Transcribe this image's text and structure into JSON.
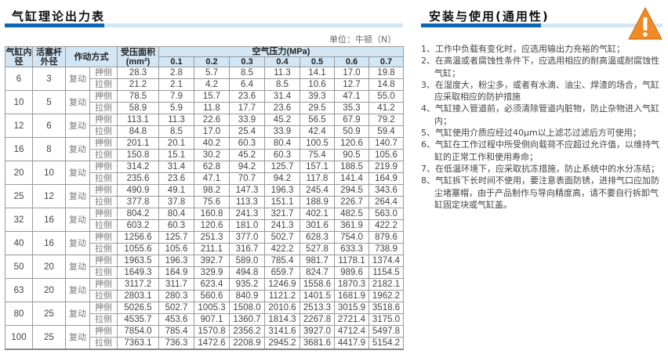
{
  "left_title": "气缸理论出力表",
  "right_title": "安装与使用(通用性)",
  "unit": "单位：牛顿（N）",
  "warning_icon": "warning-triangle-icon",
  "colors": {
    "accent": "#1166b3",
    "header_bg": "#d3e6f6",
    "warning": "#f08a24"
  },
  "table": {
    "headers": {
      "bore": "气缸内径",
      "rod": "活塞杆外径",
      "action": "作动方式",
      "area": "受压面积(mm²)",
      "pressure": "空气压力(MPa)",
      "pressures": [
        "0.1",
        "0.2",
        "0.3",
        "0.4",
        "0.5",
        "0.6",
        "0.7"
      ]
    },
    "rows": [
      {
        "bore": "6",
        "rod": "3",
        "action": "复动",
        "push": {
          "side": "押侧",
          "area": "28.3",
          "forces": [
            "2.8",
            "5.7",
            "8.5",
            "11.3",
            "14.1",
            "17.0",
            "19.8"
          ]
        },
        "pull": {
          "side": "拉侧",
          "area": "21.2",
          "forces": [
            "2.1",
            "4.2",
            "6.4",
            "8.5",
            "10.6",
            "12.7",
            "14.8"
          ]
        }
      },
      {
        "bore": "10",
        "rod": "5",
        "action": "复动",
        "push": {
          "side": "押侧",
          "area": "78.5",
          "forces": [
            "7.9",
            "15.7",
            "23.6",
            "31.4",
            "39.3",
            "47.1",
            "55.0"
          ]
        },
        "pull": {
          "side": "拉侧",
          "area": "58.9",
          "forces": [
            "5.9",
            "11.8",
            "17.7",
            "23.6",
            "29.5",
            "35.3",
            "41.2"
          ]
        }
      },
      {
        "bore": "12",
        "rod": "6",
        "action": "复动",
        "push": {
          "side": "押侧",
          "area": "113.1",
          "forces": [
            "11.3",
            "22.6",
            "33.9",
            "45.2",
            "56.5",
            "67.9",
            "79.2"
          ]
        },
        "pull": {
          "side": "拉侧",
          "area": "84.8",
          "forces": [
            "8.5",
            "17.0",
            "25.4",
            "33.9",
            "42.4",
            "50.9",
            "59.4"
          ]
        }
      },
      {
        "bore": "16",
        "rod": "8",
        "action": "复动",
        "push": {
          "side": "押侧",
          "area": "201.1",
          "forces": [
            "20.1",
            "40.2",
            "60.3",
            "80.4",
            "100.5",
            "120.6",
            "140.7"
          ]
        },
        "pull": {
          "side": "拉侧",
          "area": "150.8",
          "forces": [
            "15.1",
            "30.2",
            "45.2",
            "60.3",
            "75.4",
            "90.5",
            "105.6"
          ]
        }
      },
      {
        "bore": "20",
        "rod": "10",
        "action": "复动",
        "push": {
          "side": "押侧",
          "area": "314.2",
          "forces": [
            "31.4",
            "62.8",
            "94.2",
            "125.7",
            "157.1",
            "188.5",
            "219.9"
          ]
        },
        "pull": {
          "side": "拉侧",
          "area": "235.6",
          "forces": [
            "23.6",
            "47.1",
            "70.7",
            "94.2",
            "117.8",
            "141.4",
            "164.9"
          ]
        }
      },
      {
        "bore": "25",
        "rod": "12",
        "action": "复动",
        "push": {
          "side": "押侧",
          "area": "490.9",
          "forces": [
            "49.1",
            "98.2",
            "147.3",
            "196.3",
            "245.4",
            "294.5",
            "343.6"
          ]
        },
        "pull": {
          "side": "拉侧",
          "area": "377.8",
          "forces": [
            "37.8",
            "75.6",
            "113.3",
            "151.1",
            "188.9",
            "226.7",
            "264.4"
          ]
        }
      },
      {
        "bore": "32",
        "rod": "16",
        "action": "复动",
        "push": {
          "side": "押侧",
          "area": "804.2",
          "forces": [
            "80.4",
            "160.8",
            "241.3",
            "321.7",
            "402.1",
            "482.5",
            "563.0"
          ]
        },
        "pull": {
          "side": "拉侧",
          "area": "603.2",
          "forces": [
            "60.3",
            "120.6",
            "181.0",
            "241.3",
            "301.6",
            "361.9",
            "422.2"
          ]
        }
      },
      {
        "bore": "40",
        "rod": "16",
        "action": "复动",
        "push": {
          "side": "押侧",
          "area": "1256.6",
          "forces": [
            "125.7",
            "251.3",
            "377.0",
            "502.7",
            "628.3",
            "754.0",
            "879.6"
          ]
        },
        "pull": {
          "side": "拉侧",
          "area": "1055.6",
          "forces": [
            "105.6",
            "211.1",
            "316.7",
            "422.2",
            "527.8",
            "633.3",
            "738.9"
          ]
        }
      },
      {
        "bore": "50",
        "rod": "20",
        "action": "复动",
        "push": {
          "side": "押侧",
          "area": "1963.5",
          "forces": [
            "196.3",
            "392.7",
            "589.0",
            "785.4",
            "981.7",
            "1178.1",
            "1374.4"
          ]
        },
        "pull": {
          "side": "拉侧",
          "area": "1649.3",
          "forces": [
            "164.9",
            "329.9",
            "494.8",
            "659.7",
            "824.7",
            "989.6",
            "1154.5"
          ]
        }
      },
      {
        "bore": "63",
        "rod": "20",
        "action": "复动",
        "push": {
          "side": "押侧",
          "area": "3117.2",
          "forces": [
            "311.7",
            "623.4",
            "935.2",
            "1246.9",
            "1558.6",
            "1870.3",
            "2182.1"
          ]
        },
        "pull": {
          "side": "拉侧",
          "area": "2803.1",
          "forces": [
            "280.3",
            "560.6",
            "840.9",
            "1121.2",
            "1401.5",
            "1681.9",
            "1962.2"
          ]
        }
      },
      {
        "bore": "80",
        "rod": "25",
        "action": "复动",
        "push": {
          "side": "押侧",
          "area": "5026.5",
          "forces": [
            "502.7",
            "1005.3",
            "1508.0",
            "2010.6",
            "2513.3",
            "3015.9",
            "3518.6"
          ]
        },
        "pull": {
          "side": "拉侧",
          "area": "4535.7",
          "forces": [
            "453.6",
            "907.1",
            "1360.7",
            "1814.3",
            "2267.8",
            "2721.4",
            "3175.0"
          ]
        }
      },
      {
        "bore": "100",
        "rod": "25",
        "action": "复动",
        "push": {
          "side": "押侧",
          "area": "7854.0",
          "forces": [
            "785.4",
            "1570.8",
            "2356.2",
            "3141.6",
            "3927.0",
            "4712.4",
            "5497.8"
          ]
        },
        "pull": {
          "side": "拉侧",
          "area": "7363.1",
          "forces": [
            "736.3",
            "1472.6",
            "2208.9",
            "2945.2",
            "3681.6",
            "4417.9",
            "5154.2"
          ]
        }
      }
    ]
  },
  "notes": [
    "1、工作中负载有变化时，应选用输出力充裕的气缸；",
    "2、在高温或者腐蚀性条件下，应选用相应的耐高温或耐腐蚀性气缸；",
    "3、在湿度大，粉尘多，或者有水滴、油尘、焊渣的场合，气缸应采取相应的防护措施",
    "4、气缸接入管道前，必须清除管道内脏物，防止杂物进入气缸内；",
    "5、气缸使用介质应经过40μm以上滤芯过滤后方可使用；",
    "6、气缸在工作过程中所受侧向载荷不应超过允许值，以维持气缸的正常工作和使用寿命；",
    "7、在低温环境下，应采取抗冻措施，防止系统中的水分冻结；",
    "8、气缸拆下长时间不使用，要注意表面防锈，进排气口应加防尘堵塞帽，由于产品制作与导向精度高，请不要自行拆卸气缸固定块或气缸盖。"
  ]
}
